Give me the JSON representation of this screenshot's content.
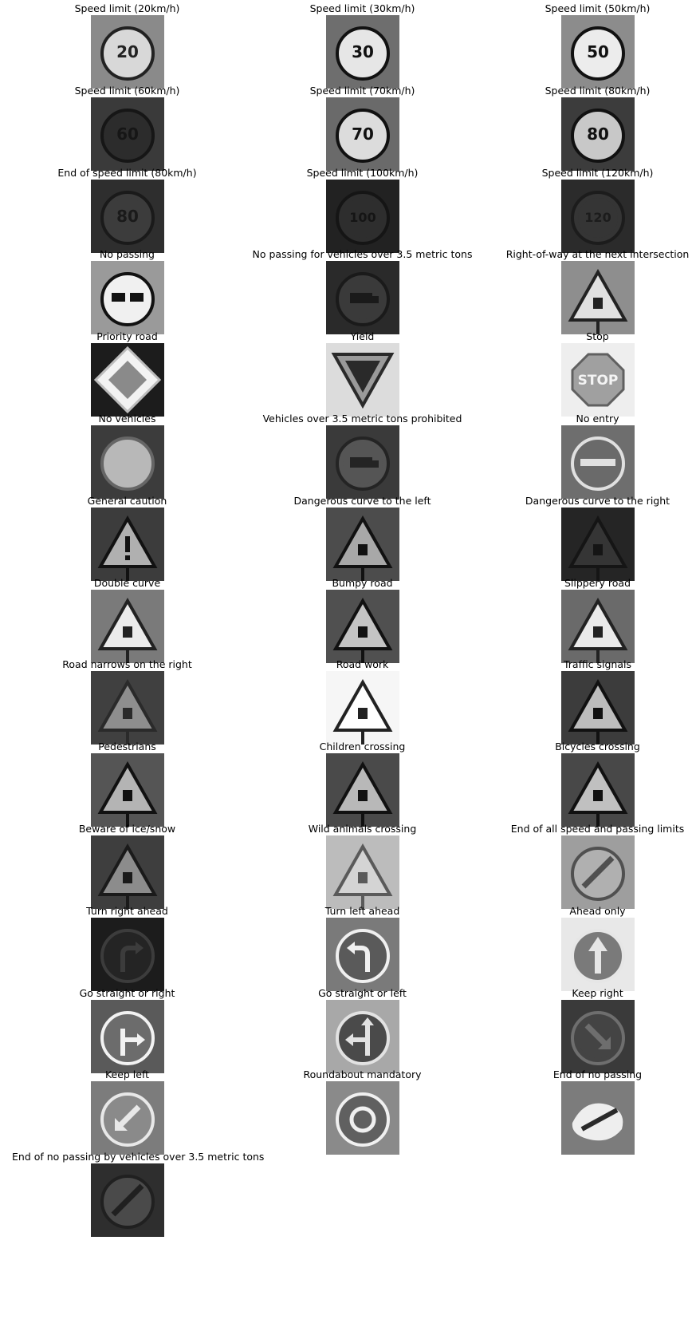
{
  "signs": [
    {
      "title": "Speed limit (20km/h)",
      "shape": "circle",
      "symbol": "20",
      "bg": "#8a8a8a",
      "sign": "#d8d8d8",
      "ink": "#222222"
    },
    {
      "title": "Speed limit (30km/h)",
      "shape": "circle",
      "symbol": "30",
      "bg": "#6e6e6e",
      "sign": "#e6e6e6",
      "ink": "#111111"
    },
    {
      "title": "Speed limit (50km/h)",
      "shape": "circle",
      "symbol": "50",
      "bg": "#8c8c8c",
      "sign": "#ececec",
      "ink": "#111111"
    },
    {
      "title": "Speed limit (60km/h)",
      "shape": "circle",
      "symbol": "60",
      "bg": "#3a3a3a",
      "sign": "#2c2c2c",
      "ink": "#161616"
    },
    {
      "title": "Speed limit (70km/h)",
      "shape": "circle",
      "symbol": "70",
      "bg": "#6a6a6a",
      "sign": "#dcdcdc",
      "ink": "#111111"
    },
    {
      "title": "Speed limit (80km/h)",
      "shape": "circle",
      "symbol": "80",
      "bg": "#3c3c3c",
      "sign": "#c8c8c8",
      "ink": "#111111"
    },
    {
      "title": "End of speed limit (80km/h)",
      "shape": "circle",
      "symbol": "80",
      "bg": "#2e2e2e",
      "sign": "#3c3c3c",
      "ink": "#1a1a1a"
    },
    {
      "title": "Speed limit (100km/h)",
      "shape": "circle",
      "symbol": "100",
      "bg": "#222222",
      "sign": "#2e2e2e",
      "ink": "#151515"
    },
    {
      "title": "Speed limit (120km/h)",
      "shape": "circle",
      "symbol": "120",
      "bg": "#2b2b2b",
      "sign": "#353535",
      "ink": "#1c1c1c"
    },
    {
      "title": "No passing",
      "shape": "circle",
      "symbol": "cars",
      "bg": "#9a9a9a",
      "sign": "#f0f0f0",
      "ink": "#111111"
    },
    {
      "title": "No passing for vehicles over 3.5 metric tons",
      "shape": "circle",
      "symbol": "truck",
      "bg": "#2a2a2a",
      "sign": "#3a3a3a",
      "ink": "#1a1a1a"
    },
    {
      "title": "Right-of-way at the next intersection",
      "shape": "triangle",
      "symbol": "cross",
      "bg": "#8e8e8e",
      "sign": "#e0e0e0",
      "ink": "#222222"
    },
    {
      "title": "Priority road",
      "shape": "diamond",
      "symbol": "",
      "bg": "#1c1c1c",
      "sign": "#f2f2f2",
      "ink": "#8a8a8a"
    },
    {
      "title": "Yield",
      "shape": "invtriangle",
      "symbol": "",
      "bg": "#dcdcdc",
      "sign": "#9a9a9a",
      "ink": "#2a2a2a"
    },
    {
      "title": "Stop",
      "shape": "octagon",
      "symbol": "STOP",
      "bg": "#eeeeee",
      "sign": "#a0a0a0",
      "ink": "#f4f4f4"
    },
    {
      "title": "No vehicles",
      "shape": "circle",
      "symbol": "",
      "bg": "#3c3c3c",
      "sign": "#b8b8b8",
      "ink": "#666666"
    },
    {
      "title": "Vehicles over 3.5 metric tons prohibited",
      "shape": "circle",
      "symbol": "truck",
      "bg": "#3a3a3a",
      "sign": "#555555",
      "ink": "#242424"
    },
    {
      "title": "No entry",
      "shape": "circle",
      "symbol": "bar",
      "bg": "#6e6e6e",
      "sign": "#6a6a6a",
      "ink": "#e0e0e0"
    },
    {
      "title": "General caution",
      "shape": "triangle",
      "symbol": "!",
      "bg": "#3c3c3c",
      "sign": "#b0b0b0",
      "ink": "#111111"
    },
    {
      "title": "Dangerous curve to the left",
      "shape": "triangle",
      "symbol": "curveL",
      "bg": "#4c4c4c",
      "sign": "#a8a8a8",
      "ink": "#111111"
    },
    {
      "title": "Dangerous curve to the right",
      "shape": "triangle",
      "symbol": "curveR",
      "bg": "#252525",
      "sign": "#353535",
      "ink": "#151515"
    },
    {
      "title": "Double curve",
      "shape": "triangle",
      "symbol": "curve2",
      "bg": "#7a7a7a",
      "sign": "#ebebeb",
      "ink": "#222222"
    },
    {
      "title": "Bumpy road",
      "shape": "triangle",
      "symbol": "bump",
      "bg": "#505050",
      "sign": "#c4c4c4",
      "ink": "#111111"
    },
    {
      "title": "Slippery road",
      "shape": "triangle",
      "symbol": "car",
      "bg": "#6a6a6a",
      "sign": "#eaeaea",
      "ink": "#222222"
    },
    {
      "title": "Road narrows on the right",
      "shape": "triangle",
      "symbol": "narrow",
      "bg": "#404040",
      "sign": "#8e8e8e",
      "ink": "#2a2a2a"
    },
    {
      "title": "Road work",
      "shape": "triangle",
      "symbol": "work",
      "bg": "#f6f6f6",
      "sign": "#ffffff",
      "ink": "#222222"
    },
    {
      "title": "Traffic signals",
      "shape": "triangle",
      "symbol": "light",
      "bg": "#3c3c3c",
      "sign": "#bdbdbd",
      "ink": "#111111"
    },
    {
      "title": "Pedestrians",
      "shape": "triangle",
      "symbol": "person",
      "bg": "#555555",
      "sign": "#b4b4b4",
      "ink": "#111111"
    },
    {
      "title": "Children crossing",
      "shape": "triangle",
      "symbol": "kids",
      "bg": "#4a4a4a",
      "sign": "#b8b8b8",
      "ink": "#111111"
    },
    {
      "title": "Bicycles crossing",
      "shape": "triangle",
      "symbol": "bike",
      "bg": "#484848",
      "sign": "#c0c0c0",
      "ink": "#111111"
    },
    {
      "title": "Beware of ice/snow",
      "shape": "triangle",
      "symbol": "snow",
      "bg": "#3e3e3e",
      "sign": "#8c8c8c",
      "ink": "#1a1a1a"
    },
    {
      "title": "Wild animals crossing",
      "shape": "triangle",
      "symbol": "deer",
      "bg": "#bcbcbc",
      "sign": "#d4d4d4",
      "ink": "#5a5a5a"
    },
    {
      "title": "End of all speed and passing limits",
      "shape": "circle",
      "symbol": "slash",
      "bg": "#9e9e9e",
      "sign": "#b0b0b0",
      "ink": "#505050"
    },
    {
      "title": "Turn right ahead",
      "shape": "circle",
      "symbol": "turnR",
      "bg": "#1c1c1c",
      "sign": "#242424",
      "ink": "#3c3c3c"
    },
    {
      "title": "Turn left ahead",
      "shape": "circle",
      "symbol": "turnL",
      "bg": "#7a7a7a",
      "sign": "#5a5a5a",
      "ink": "#f0f0f0"
    },
    {
      "title": "Ahead only",
      "shape": "circle",
      "symbol": "up",
      "bg": "#e8e8e8",
      "sign": "#7a7a7a",
      "ink": "#e6e6e6"
    },
    {
      "title": "Go straight or right",
      "shape": "circle",
      "symbol": "upR",
      "bg": "#5a5a5a",
      "sign": "#6c6c6c",
      "ink": "#f2f2f2"
    },
    {
      "title": "Go straight or left",
      "shape": "circle",
      "symbol": "upL",
      "bg": "#a8a8a8",
      "sign": "#4a4a4a",
      "ink": "#e2e2e2"
    },
    {
      "title": "Keep right",
      "shape": "circle",
      "symbol": "keepR",
      "bg": "#3a3a3a",
      "sign": "#444444",
      "ink": "#6e6e6e"
    },
    {
      "title": "Keep left",
      "shape": "circle",
      "symbol": "keepL",
      "bg": "#7c7c7c",
      "sign": "#8a8a8a",
      "ink": "#e8e8e8"
    },
    {
      "title": "Roundabout mandatory",
      "shape": "circle",
      "symbol": "round",
      "bg": "#8a8a8a",
      "sign": "#606060",
      "ink": "#f0f0f0"
    },
    {
      "title": "End of no passing",
      "shape": "blob",
      "symbol": "",
      "bg": "#7c7c7c",
      "sign": "#eeeeee",
      "ink": "#2a2a2a"
    },
    {
      "title": "End of no passing by vehicles over 3.5 metric tons",
      "shape": "circle",
      "symbol": "slash",
      "bg": "#2e2e2e",
      "sign": "#4a4a4a",
      "ink": "#202020"
    }
  ]
}
